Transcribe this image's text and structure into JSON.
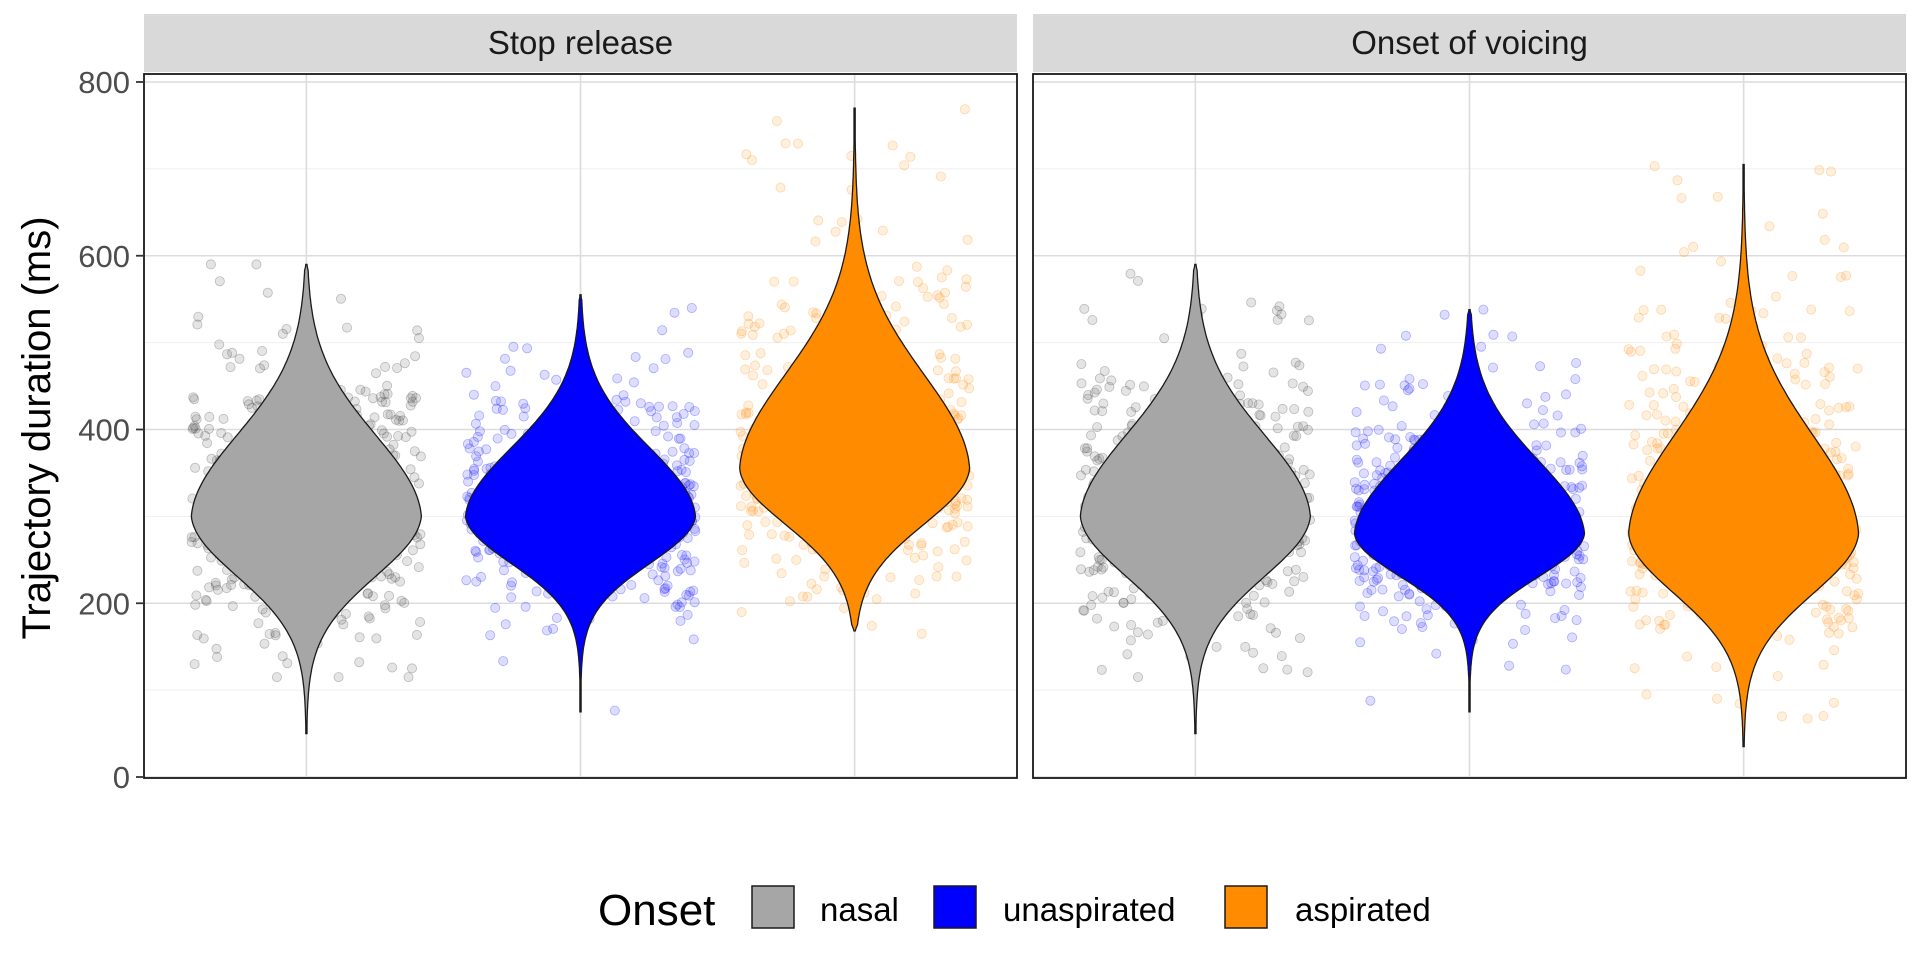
{
  "chart_data": {
    "type": "violin",
    "ylabel": "Trajectory duration (ms)",
    "xlabel": "",
    "ylim": [
      0,
      800
    ],
    "yticks": [
      0,
      200,
      400,
      600,
      800
    ],
    "grid": true,
    "legend": {
      "title": "Onset",
      "position": "bottom",
      "entries": [
        "nasal",
        "unaspirated",
        "aspirated"
      ]
    },
    "series_colors": {
      "nasal": "#A6A6A6",
      "unaspirated": "#0000FF",
      "aspirated": "#FF8C00"
    },
    "point_colors": {
      "nasal": "#555555",
      "unaspirated": "#2B2BFF",
      "aspirated": "#FF9A2E"
    },
    "facets": [
      {
        "title": "Stop release",
        "groups": [
          {
            "name": "nasal",
            "min": 50,
            "max": 590,
            "mode": 300,
            "spread_low": 70,
            "spread_high": 95,
            "points_range": [
              115,
              590
            ]
          },
          {
            "name": "unaspirated",
            "min": 75,
            "max": 555,
            "mode": 300,
            "spread_low": 55,
            "spread_high": 80,
            "points_range": [
              75,
              555
            ]
          },
          {
            "name": "aspirated",
            "min": 168,
            "max": 770,
            "mode": 355,
            "spread_low": 65,
            "spread_high": 110,
            "points_range": [
              165,
              770
            ]
          }
        ]
      },
      {
        "title": "Onset of voicing",
        "groups": [
          {
            "name": "nasal",
            "min": 50,
            "max": 590,
            "mode": 300,
            "spread_low": 70,
            "spread_high": 95,
            "points_range": [
              115,
              590
            ]
          },
          {
            "name": "unaspirated",
            "min": 75,
            "max": 538,
            "mode": 280,
            "spread_low": 50,
            "spread_high": 85,
            "points_range": [
              75,
              538
            ]
          },
          {
            "name": "aspirated",
            "min": 35,
            "max": 705,
            "mode": 280,
            "spread_low": 70,
            "spread_high": 115,
            "points_range": [
              35,
              705
            ]
          }
        ]
      }
    ]
  }
}
